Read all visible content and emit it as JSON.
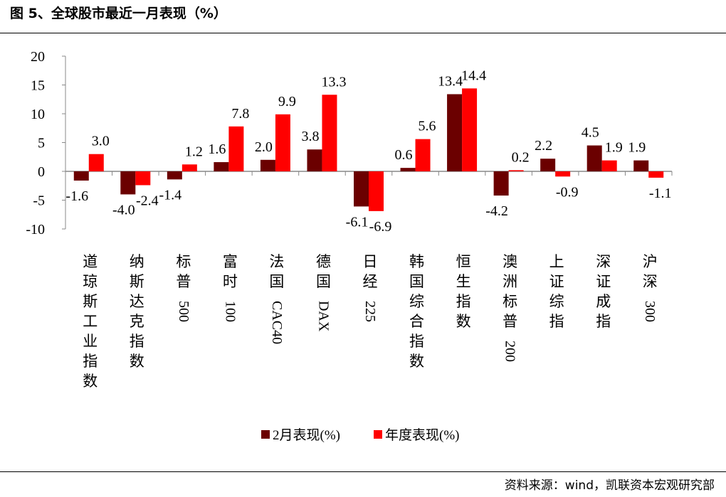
{
  "title": "图 5、全球股市最近一月表现（%）",
  "source": "资料来源：wind，凯联资本宏观研究部",
  "chart_data": {
    "type": "bar",
    "categories": [
      "道琼斯工业指数",
      "纳斯达克指数",
      "标普500",
      "富时100",
      "法国CAC40",
      "德国DAX",
      "日经225",
      "韩国综合指数",
      "恒生指数",
      "澳洲标普200",
      "上证综指",
      "深证成指",
      "沪深300"
    ],
    "series": [
      {
        "name": "2月表现(%)",
        "color": "#6b0000",
        "values": [
          -1.6,
          -4.0,
          -1.4,
          1.6,
          2.0,
          3.8,
          -6.1,
          0.6,
          13.4,
          -4.2,
          2.2,
          4.5,
          1.9
        ]
      },
      {
        "name": "年度表现(%)",
        "color": "#ff0000",
        "values": [
          3.0,
          -2.4,
          1.2,
          7.8,
          9.9,
          13.3,
          -6.9,
          5.6,
          14.4,
          0.2,
          -0.9,
          1.9,
          -1.1
        ]
      }
    ],
    "yticks": [
      20,
      15,
      10,
      5,
      0,
      -5,
      -10
    ],
    "ylim": [
      -10,
      20
    ],
    "grid": false,
    "legend": "bottom"
  }
}
